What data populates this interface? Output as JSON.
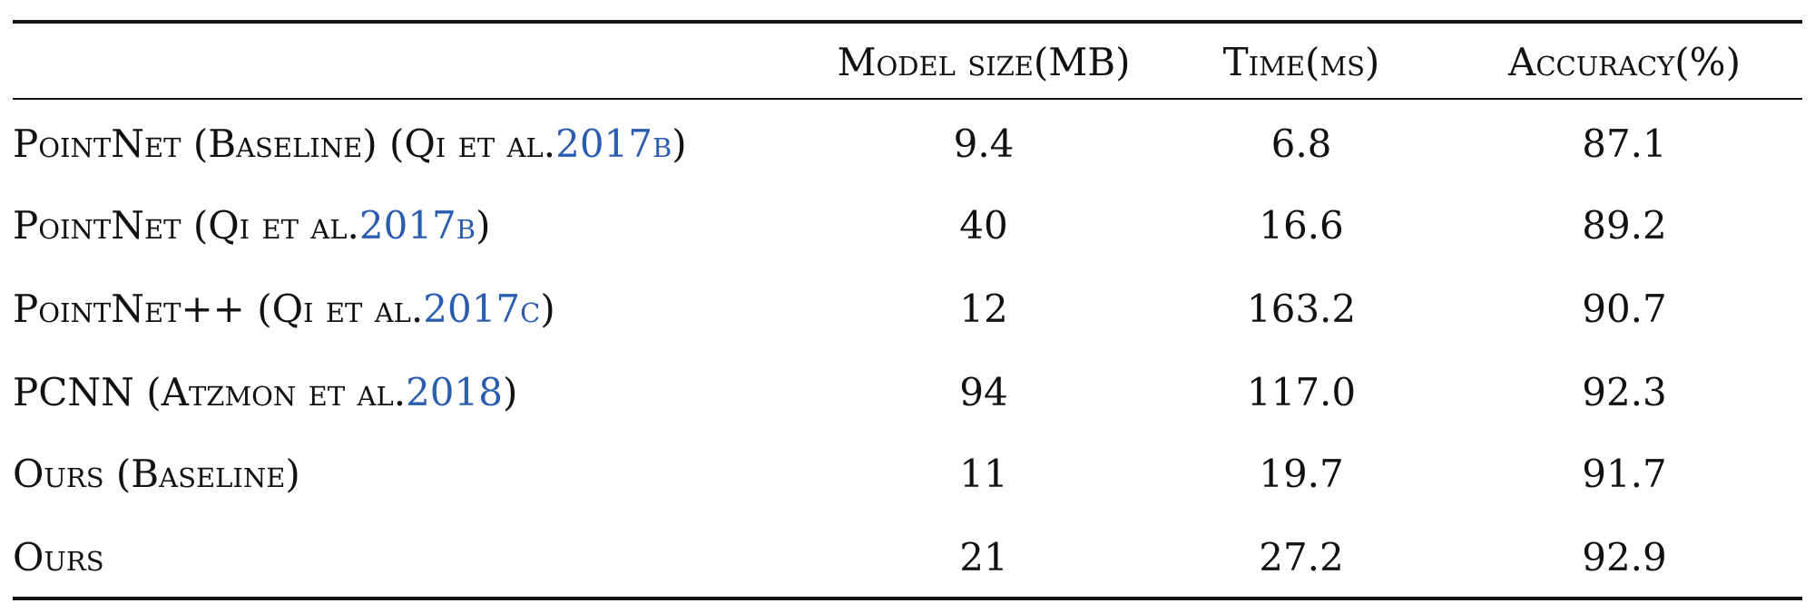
{
  "table": {
    "header": {
      "method": "",
      "model_size": "Model size(MB)",
      "time": "Time(ms)",
      "accuracy": "Accuracy(%)"
    },
    "rows": [
      {
        "method_prefix": "PointNet (Baseline) (Qi et al. ",
        "method_cite": "2017b",
        "method_suffix": ")",
        "model_size": "9.4",
        "time": "6.8",
        "accuracy": "87.1"
      },
      {
        "method_prefix": "PointNet (Qi et al. ",
        "method_cite": "2017b",
        "method_suffix": ")",
        "model_size": "40",
        "time": "16.6",
        "accuracy": "89.2"
      },
      {
        "method_prefix": "PointNet++ (Qi et al. ",
        "method_cite": "2017c",
        "method_suffix": ")",
        "model_size": "12",
        "time": "163.2",
        "accuracy": "90.7"
      },
      {
        "method_prefix": "PCNN (Atzmon et al. ",
        "method_cite": "2018",
        "method_suffix": ")",
        "model_size": "94",
        "time": "117.0",
        "accuracy": "92.3"
      },
      {
        "method_prefix": "Ours (Baseline)",
        "method_cite": "",
        "method_suffix": "",
        "model_size": "11",
        "time": "19.7",
        "accuracy": "91.7"
      },
      {
        "method_prefix": "Ours",
        "method_cite": "",
        "method_suffix": "",
        "model_size": "21",
        "time": "27.2",
        "accuracy": "92.9"
      }
    ],
    "colors": {
      "text": "#111111",
      "citation": "#2a5db0",
      "rule": "#111111"
    }
  }
}
